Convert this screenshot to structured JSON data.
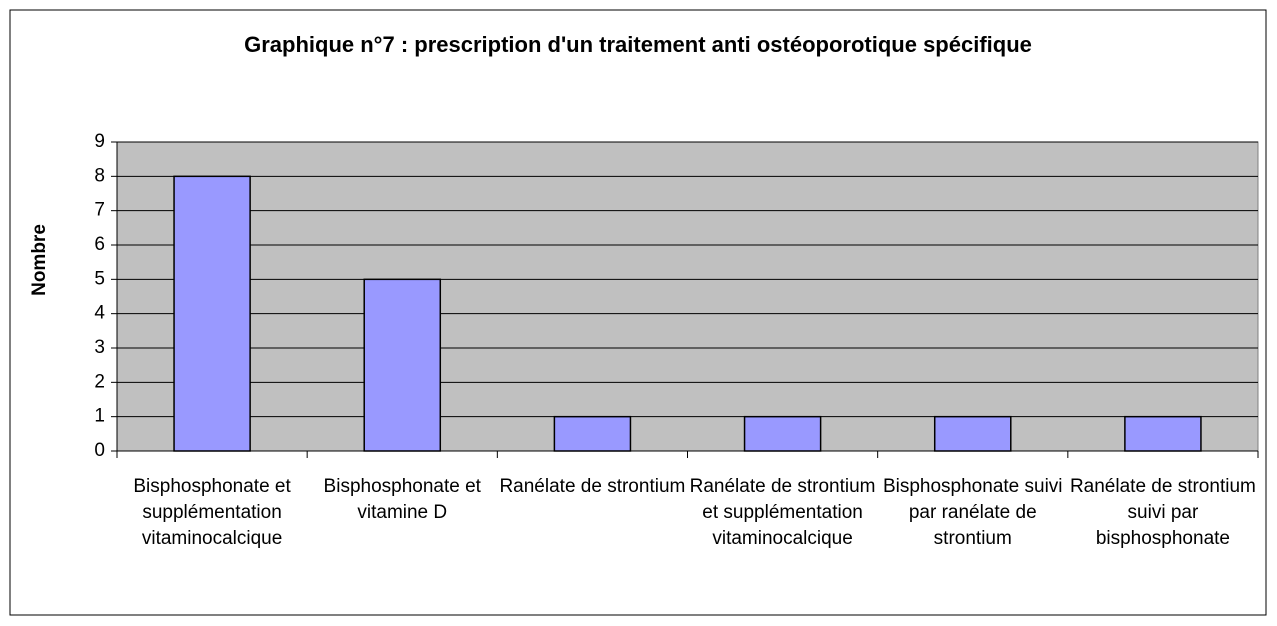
{
  "chart_data": {
    "type": "bar",
    "title": "Graphique n°7 : prescription d'un traitement anti ostéoporotique spécifique",
    "y_label": "Nombre",
    "categories": [
      "Bisphosphonate et supplémentation vitaminocalcique",
      "Bisphosphonate et vitamine D",
      "Ranélate de strontium",
      "Ranélate de strontium et supplémentation vitaminocalcique",
      "Bisphosphonate suivi par ranélate de strontium",
      "Ranélate de strontium suivi par bisphosphonate"
    ],
    "values": [
      8,
      5,
      1,
      1,
      1,
      1
    ],
    "color": "#9999ff",
    "ylim": [
      0,
      9
    ],
    "yticks": [
      0,
      1,
      2,
      3,
      4,
      5,
      6,
      7,
      8,
      9
    ],
    "grid": true
  }
}
